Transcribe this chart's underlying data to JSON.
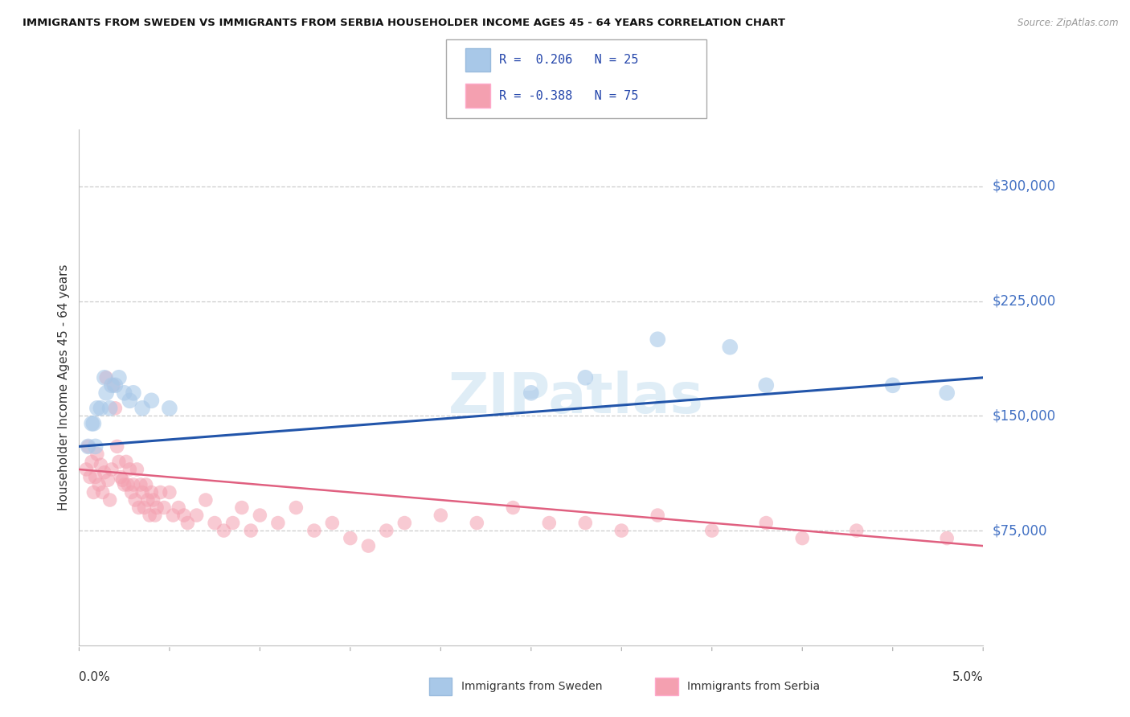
{
  "title": "IMMIGRANTS FROM SWEDEN VS IMMIGRANTS FROM SERBIA HOUSEHOLDER INCOME AGES 45 - 64 YEARS CORRELATION CHART",
  "source": "Source: ZipAtlas.com",
  "ylabel": "Householder Income Ages 45 - 64 years",
  "xlim": [
    0.0,
    5.0
  ],
  "ylim": [
    0,
    337500
  ],
  "yticks": [
    75000,
    150000,
    225000,
    300000
  ],
  "ytick_labels": [
    "$75,000",
    "$150,000",
    "$225,000",
    "$300,000"
  ],
  "watermark": "ZIPatlas",
  "legend_sweden_r": "R =  0.206",
  "legend_sweden_n": "N = 25",
  "legend_serbia_r": "R = -0.388",
  "legend_serbia_n": "N = 75",
  "sweden_color": "#a8c8e8",
  "serbia_color": "#f4a0b0",
  "sweden_line_color": "#2255aa",
  "serbia_line_color": "#e06080",
  "sweden_scatter": [
    [
      0.05,
      130000
    ],
    [
      0.07,
      145000
    ],
    [
      0.08,
      145000
    ],
    [
      0.09,
      130000
    ],
    [
      0.1,
      155000
    ],
    [
      0.12,
      155000
    ],
    [
      0.14,
      175000
    ],
    [
      0.15,
      165000
    ],
    [
      0.17,
      155000
    ],
    [
      0.18,
      170000
    ],
    [
      0.2,
      170000
    ],
    [
      0.22,
      175000
    ],
    [
      0.25,
      165000
    ],
    [
      0.28,
      160000
    ],
    [
      0.3,
      165000
    ],
    [
      0.35,
      155000
    ],
    [
      0.4,
      160000
    ],
    [
      0.5,
      155000
    ],
    [
      2.5,
      165000
    ],
    [
      2.8,
      175000
    ],
    [
      3.2,
      200000
    ],
    [
      3.6,
      195000
    ],
    [
      3.8,
      170000
    ],
    [
      4.5,
      170000
    ],
    [
      4.8,
      165000
    ]
  ],
  "serbia_scatter": [
    [
      0.04,
      115000
    ],
    [
      0.05,
      130000
    ],
    [
      0.06,
      110000
    ],
    [
      0.07,
      120000
    ],
    [
      0.08,
      100000
    ],
    [
      0.09,
      110000
    ],
    [
      0.1,
      125000
    ],
    [
      0.11,
      105000
    ],
    [
      0.12,
      118000
    ],
    [
      0.13,
      100000
    ],
    [
      0.14,
      113000
    ],
    [
      0.15,
      175000
    ],
    [
      0.16,
      108000
    ],
    [
      0.17,
      95000
    ],
    [
      0.18,
      115000
    ],
    [
      0.19,
      170000
    ],
    [
      0.2,
      155000
    ],
    [
      0.21,
      130000
    ],
    [
      0.22,
      120000
    ],
    [
      0.23,
      110000
    ],
    [
      0.24,
      108000
    ],
    [
      0.25,
      105000
    ],
    [
      0.26,
      120000
    ],
    [
      0.27,
      105000
    ],
    [
      0.28,
      115000
    ],
    [
      0.29,
      100000
    ],
    [
      0.3,
      105000
    ],
    [
      0.31,
      95000
    ],
    [
      0.32,
      115000
    ],
    [
      0.33,
      90000
    ],
    [
      0.34,
      105000
    ],
    [
      0.35,
      100000
    ],
    [
      0.36,
      90000
    ],
    [
      0.37,
      105000
    ],
    [
      0.38,
      95000
    ],
    [
      0.39,
      85000
    ],
    [
      0.4,
      100000
    ],
    [
      0.41,
      95000
    ],
    [
      0.42,
      85000
    ],
    [
      0.43,
      90000
    ],
    [
      0.45,
      100000
    ],
    [
      0.47,
      90000
    ],
    [
      0.5,
      100000
    ],
    [
      0.52,
      85000
    ],
    [
      0.55,
      90000
    ],
    [
      0.58,
      85000
    ],
    [
      0.6,
      80000
    ],
    [
      0.65,
      85000
    ],
    [
      0.7,
      95000
    ],
    [
      0.75,
      80000
    ],
    [
      0.8,
      75000
    ],
    [
      0.85,
      80000
    ],
    [
      0.9,
      90000
    ],
    [
      0.95,
      75000
    ],
    [
      1.0,
      85000
    ],
    [
      1.1,
      80000
    ],
    [
      1.2,
      90000
    ],
    [
      1.3,
      75000
    ],
    [
      1.4,
      80000
    ],
    [
      1.5,
      70000
    ],
    [
      1.6,
      65000
    ],
    [
      1.7,
      75000
    ],
    [
      1.8,
      80000
    ],
    [
      2.0,
      85000
    ],
    [
      2.2,
      80000
    ],
    [
      2.4,
      90000
    ],
    [
      2.6,
      80000
    ],
    [
      2.8,
      80000
    ],
    [
      3.0,
      75000
    ],
    [
      3.2,
      85000
    ],
    [
      3.5,
      75000
    ],
    [
      3.8,
      80000
    ],
    [
      4.0,
      70000
    ],
    [
      4.3,
      75000
    ],
    [
      4.8,
      70000
    ]
  ],
  "background_color": "#ffffff",
  "grid_color": "#cccccc"
}
